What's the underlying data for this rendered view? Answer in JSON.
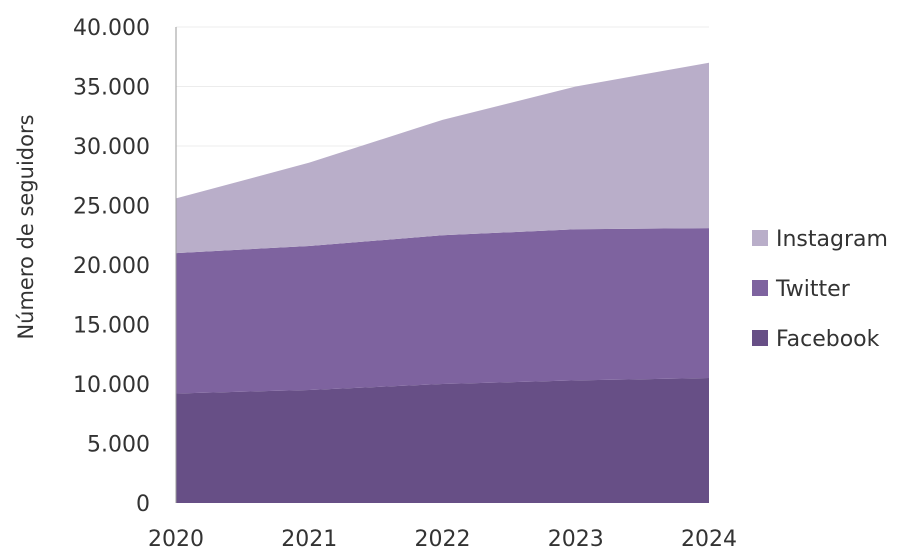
{
  "chart_data": {
    "type": "area",
    "stacked": true,
    "title": "",
    "xlabel": "",
    "ylabel": "Número de seguidors",
    "x": [
      "2020",
      "2021",
      "2022",
      "2023",
      "2024"
    ],
    "ylim": [
      0,
      40000
    ],
    "yticks": [
      0,
      5000,
      10000,
      15000,
      20000,
      25000,
      30000,
      35000,
      40000
    ],
    "ytick_labels": [
      "0",
      "5.000",
      "10.000",
      "15.000",
      "20.000",
      "25.000",
      "30.000",
      "35.000",
      "40.000"
    ],
    "grid": true,
    "legend_position": "right",
    "legend_order": [
      "Instagram",
      "Twitter",
      "Facebook"
    ],
    "series": [
      {
        "name": "Facebook",
        "color": "#674f86",
        "values": [
          9200,
          9500,
          10000,
          10300,
          10500
        ]
      },
      {
        "name": "Twitter",
        "color": "#7e639f",
        "values": [
          11800,
          12100,
          12500,
          12700,
          12600
        ]
      },
      {
        "name": "Instagram",
        "color": "#b9aec9",
        "values": [
          4600,
          7000,
          9700,
          12000,
          13900
        ]
      }
    ]
  }
}
